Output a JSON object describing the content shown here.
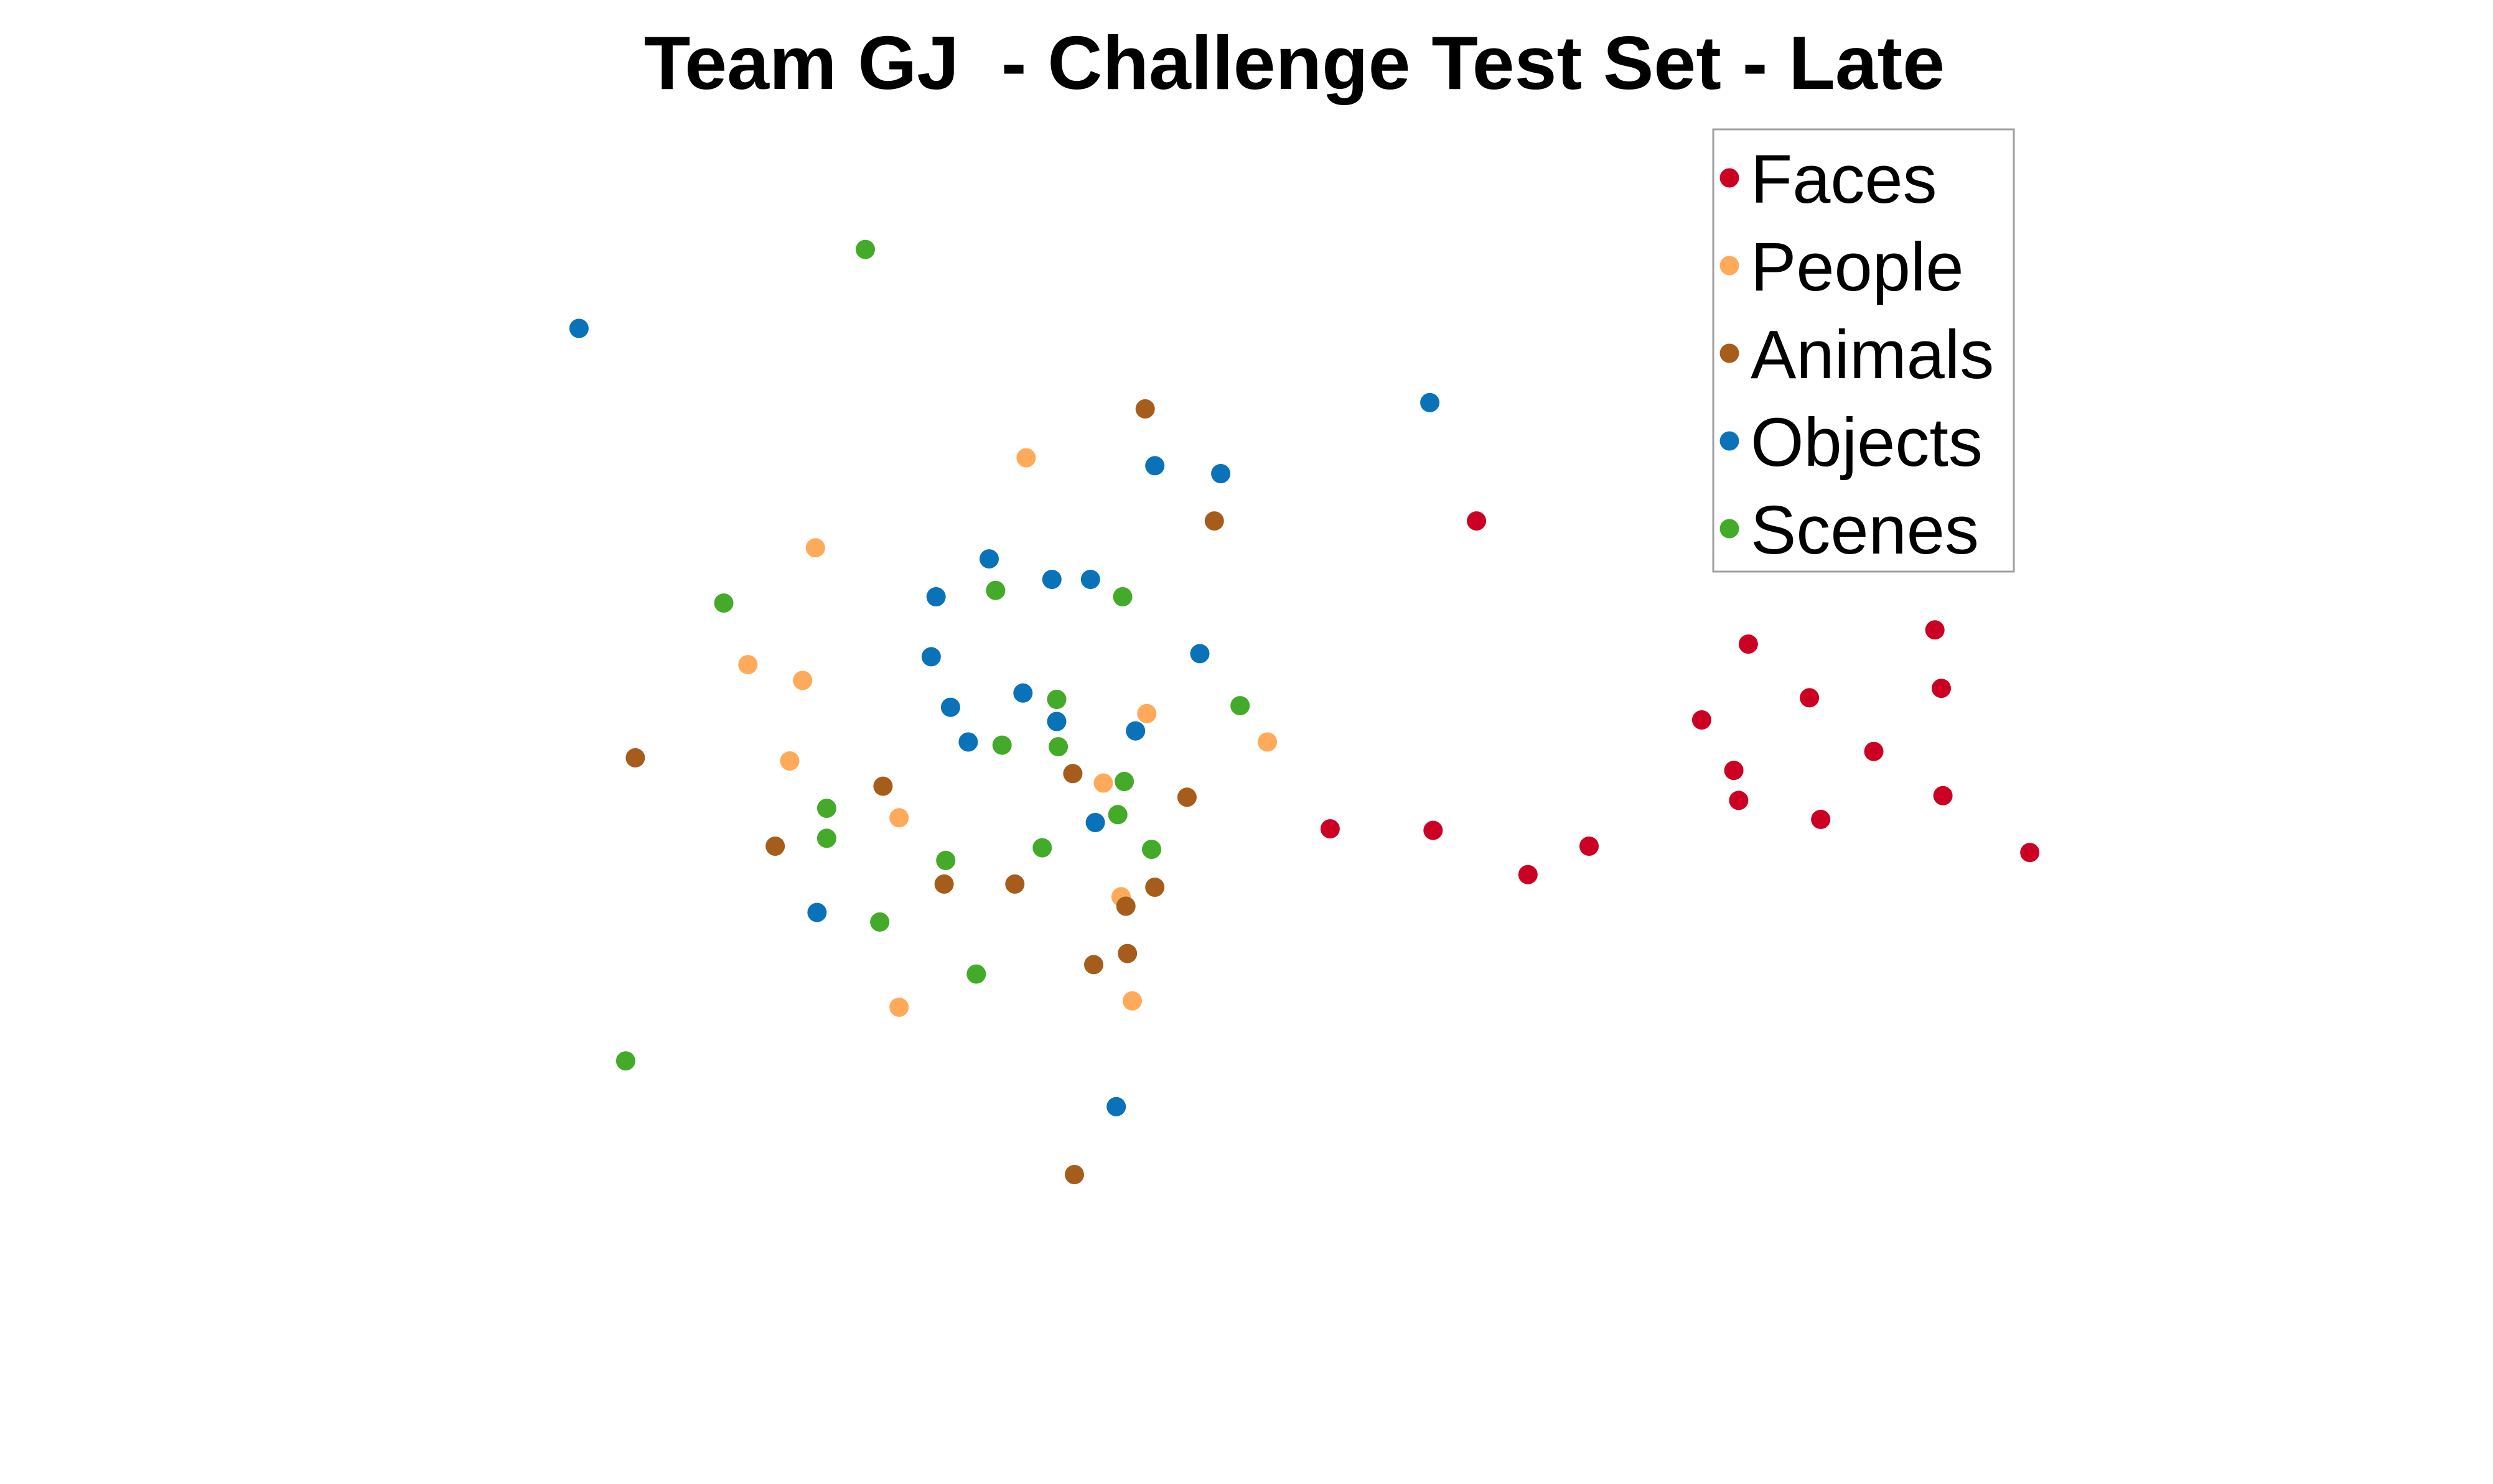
{
  "chart_data": {
    "type": "scatter",
    "title": "Team GJ  - Challenge Test Set - Late",
    "xlabel": "",
    "ylabel": "",
    "axes_visible": false,
    "grid": false,
    "xlim": [
      0,
      1550
    ],
    "ylim": [
      0,
      940
    ],
    "legend_position": "top-right",
    "series": [
      {
        "name": "Faces",
        "color": "#cc0022",
        "points": [
          {
            "x": 918,
            "y": 610
          },
          {
            "x": 1087,
            "y": 532
          },
          {
            "x": 1203,
            "y": 541
          },
          {
            "x": 1207,
            "y": 504
          },
          {
            "x": 1125,
            "y": 498
          },
          {
            "x": 1058,
            "y": 484
          },
          {
            "x": 1165,
            "y": 464
          },
          {
            "x": 1078,
            "y": 452
          },
          {
            "x": 1081,
            "y": 433
          },
          {
            "x": 1208,
            "y": 436
          },
          {
            "x": 1132,
            "y": 421
          },
          {
            "x": 827,
            "y": 415
          },
          {
            "x": 891,
            "y": 414
          },
          {
            "x": 988,
            "y": 404
          },
          {
            "x": 950,
            "y": 386
          },
          {
            "x": 1262,
            "y": 400
          }
        ]
      },
      {
        "name": "People",
        "color": "#ffaa5a",
        "points": [
          {
            "x": 638,
            "y": 650
          },
          {
            "x": 507,
            "y": 593
          },
          {
            "x": 465,
            "y": 519
          },
          {
            "x": 499,
            "y": 509
          },
          {
            "x": 713,
            "y": 488
          },
          {
            "x": 788,
            "y": 470
          },
          {
            "x": 491,
            "y": 458
          },
          {
            "x": 686,
            "y": 444
          },
          {
            "x": 559,
            "y": 422
          },
          {
            "x": 697,
            "y": 372
          },
          {
            "x": 704,
            "y": 306
          },
          {
            "x": 559,
            "y": 302
          }
        ]
      },
      {
        "name": "Animals",
        "color": "#a65d1b",
        "points": [
          {
            "x": 712,
            "y": 681
          },
          {
            "x": 755,
            "y": 610
          },
          {
            "x": 395,
            "y": 460
          },
          {
            "x": 549,
            "y": 442
          },
          {
            "x": 667,
            "y": 450
          },
          {
            "x": 738,
            "y": 435
          },
          {
            "x": 482,
            "y": 404
          },
          {
            "x": 587,
            "y": 380
          },
          {
            "x": 631,
            "y": 380
          },
          {
            "x": 718,
            "y": 378
          },
          {
            "x": 700,
            "y": 366
          },
          {
            "x": 701,
            "y": 336
          },
          {
            "x": 680,
            "y": 329
          },
          {
            "x": 668,
            "y": 196
          }
        ]
      },
      {
        "name": "Objects",
        "color": "#0a72b8",
        "points": [
          {
            "x": 360,
            "y": 732
          },
          {
            "x": 889,
            "y": 685
          },
          {
            "x": 718,
            "y": 645
          },
          {
            "x": 759,
            "y": 640
          },
          {
            "x": 615,
            "y": 586
          },
          {
            "x": 654,
            "y": 573
          },
          {
            "x": 678,
            "y": 573
          },
          {
            "x": 582,
            "y": 562
          },
          {
            "x": 579,
            "y": 524
          },
          {
            "x": 746,
            "y": 526
          },
          {
            "x": 636,
            "y": 501
          },
          {
            "x": 591,
            "y": 492
          },
          {
            "x": 657,
            "y": 483
          },
          {
            "x": 706,
            "y": 477
          },
          {
            "x": 602,
            "y": 470
          },
          {
            "x": 681,
            "y": 419
          },
          {
            "x": 508,
            "y": 362
          },
          {
            "x": 694,
            "y": 239
          }
        ]
      },
      {
        "name": "Scenes",
        "color": "#44aa2a",
        "points": [
          {
            "x": 538,
            "y": 782
          },
          {
            "x": 450,
            "y": 558
          },
          {
            "x": 619,
            "y": 566
          },
          {
            "x": 698,
            "y": 562
          },
          {
            "x": 657,
            "y": 497
          },
          {
            "x": 771,
            "y": 493
          },
          {
            "x": 623,
            "y": 468
          },
          {
            "x": 658,
            "y": 467
          },
          {
            "x": 699,
            "y": 445
          },
          {
            "x": 514,
            "y": 428
          },
          {
            "x": 695,
            "y": 424
          },
          {
            "x": 514,
            "y": 409
          },
          {
            "x": 648,
            "y": 403
          },
          {
            "x": 716,
            "y": 402
          },
          {
            "x": 588,
            "y": 395
          },
          {
            "x": 547,
            "y": 356
          },
          {
            "x": 607,
            "y": 323
          },
          {
            "x": 389,
            "y": 268
          }
        ]
      }
    ]
  }
}
